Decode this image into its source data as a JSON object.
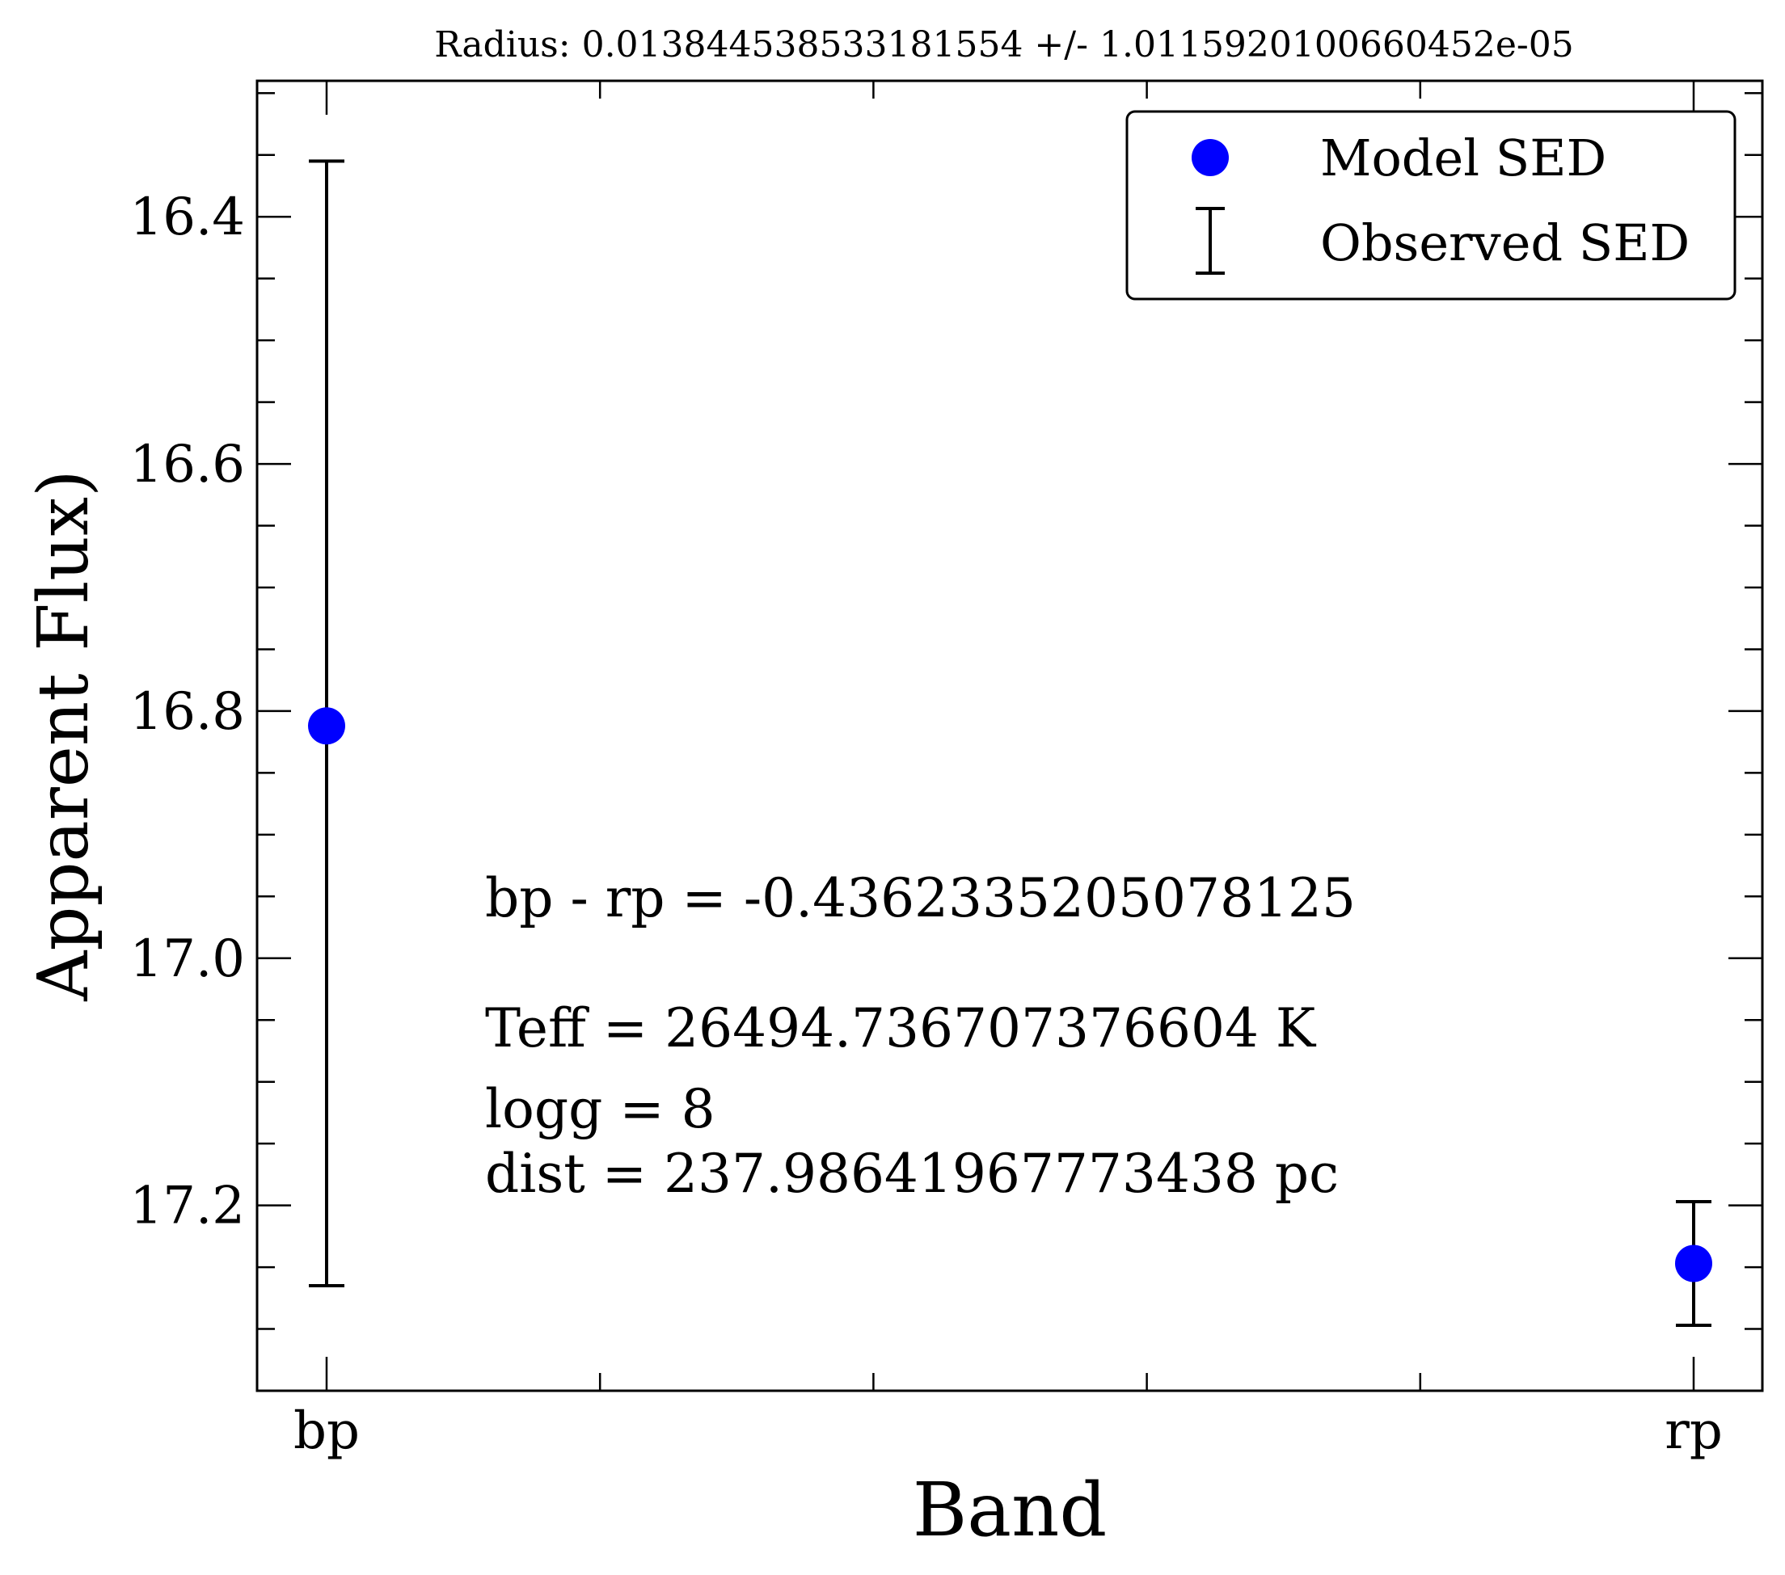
{
  "chart_data": {
    "type": "scatter",
    "title": "Radius: 0.013844538533181554 +/- 1.0115920100660452e-05",
    "xlabel": "Band",
    "ylabel": "Apparent Flux)",
    "categories": [
      "bp",
      "rp"
    ],
    "y_inverted": true,
    "ylim": [
      17.35,
      16.29
    ],
    "y_major_ticks": [
      16.4,
      16.6,
      16.8,
      17.0,
      17.2
    ],
    "y_tick_labels": [
      "16.4",
      "16.6",
      "16.8",
      "17.0",
      "17.2"
    ],
    "x_tick_labels": [
      "bp",
      "rp"
    ],
    "series": [
      {
        "name": "Model SED",
        "marker": "circle",
        "color": "#0000ff",
        "values": [
          16.812,
          17.247
        ]
      },
      {
        "name": "Observed SED",
        "marker": "errorbar",
        "color": "#000000",
        "values": [
          16.81,
          17.247
        ],
        "errors": [
          0.455,
          0.05
        ]
      }
    ],
    "legend": {
      "position": "top-right",
      "entries": [
        "Model SED",
        "Observed SED"
      ]
    },
    "annotations": [
      "bp - rp = -0.4362335205078125",
      "Teff = 26494.736707376604 K",
      "logg = 8",
      "dist = 237.98641967773438 pc"
    ],
    "grid": false
  }
}
